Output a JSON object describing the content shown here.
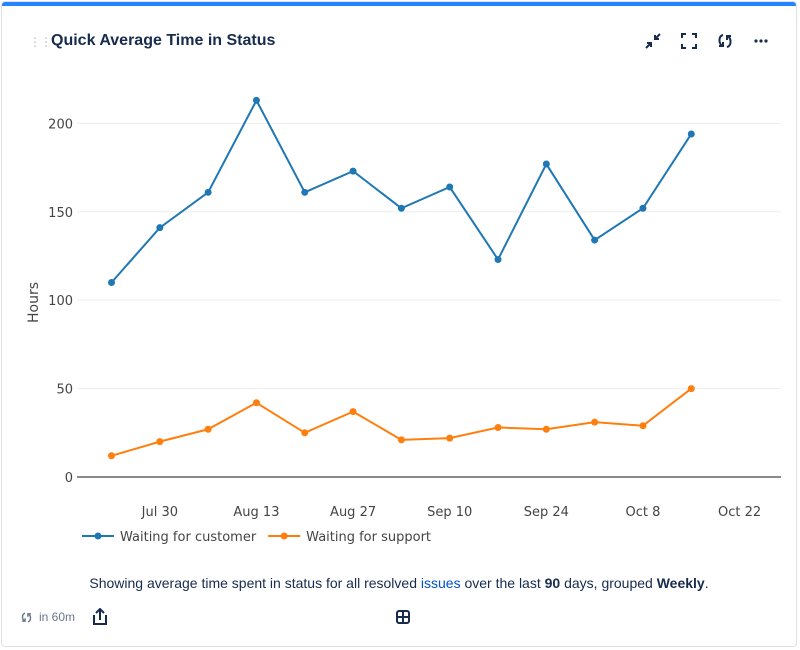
{
  "header": {
    "title": "Quick Average Time in Status",
    "accent_color": "#2684ff"
  },
  "actions": [
    {
      "icon": "minimize-icon",
      "label": "Minimize"
    },
    {
      "icon": "fullscreen-icon",
      "label": "Fullscreen"
    },
    {
      "icon": "refresh-icon",
      "label": "Refresh"
    },
    {
      "icon": "more-icon",
      "label": "More"
    }
  ],
  "chart_data": {
    "type": "line",
    "title": "",
    "xlabel": "",
    "ylabel": "Hours",
    "x": [
      "Jul 23",
      "Jul 30",
      "Aug 6",
      "Aug 13",
      "Aug 20",
      "Aug 27",
      "Sep 3",
      "Sep 10",
      "Sep 17",
      "Sep 24",
      "Oct 1",
      "Oct 8",
      "Oct 15"
    ],
    "x_ticks": [
      "Jul 30",
      "Aug 13",
      "Aug 27",
      "Sep 10",
      "Sep 24",
      "Oct 8",
      "Oct 22"
    ],
    "xlim": [
      "Jul 18",
      "Oct 28"
    ],
    "y_ticks": [
      0,
      50,
      100,
      150,
      200
    ],
    "ylim": [
      0,
      220
    ],
    "grid": true,
    "legend_position": "bottom-left",
    "series": [
      {
        "name": "Waiting for customer",
        "color": "#1f77b4",
        "values": [
          110,
          141,
          161,
          213,
          161,
          173,
          152,
          164,
          123,
          177,
          134,
          152,
          194
        ]
      },
      {
        "name": "Waiting for support",
        "color": "#ff7f0e",
        "values": [
          12,
          20,
          27,
          42,
          25,
          37,
          21,
          22,
          28,
          27,
          31,
          29,
          50
        ]
      }
    ]
  },
  "description": {
    "prefix": "Showing average time spent in status for all resolved ",
    "link": "issues",
    "middle": " over the last ",
    "days": "90",
    "after_days": " days, grouped ",
    "grouping": "Weekly",
    "suffix": "."
  },
  "footer": {
    "refresh_text": "in 60m"
  }
}
